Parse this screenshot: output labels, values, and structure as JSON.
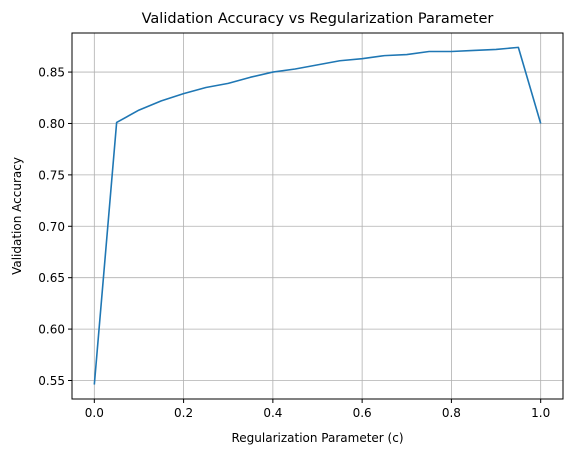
{
  "chart_data": {
    "type": "line",
    "title": "Validation Accuracy vs Regularization Parameter",
    "xlabel": "Regularization Parameter (c)",
    "ylabel": "Validation Accuracy",
    "xlim": [
      -0.05,
      1.05
    ],
    "ylim": [
      0.532,
      0.888
    ],
    "xticks": [
      0.0,
      0.2,
      0.4,
      0.6,
      0.8,
      1.0
    ],
    "xtick_labels": [
      "0.0",
      "0.2",
      "0.4",
      "0.6",
      "0.8",
      "1.0"
    ],
    "yticks": [
      0.55,
      0.6,
      0.65,
      0.7,
      0.75,
      0.8,
      0.85
    ],
    "ytick_labels": [
      "0.55",
      "0.60",
      "0.65",
      "0.70",
      "0.75",
      "0.80",
      "0.85"
    ],
    "grid": true,
    "color": "#1f77b4",
    "series": [
      {
        "x": [
          0.0,
          0.05,
          0.1,
          0.15,
          0.2,
          0.25,
          0.3,
          0.35,
          0.4,
          0.45,
          0.5,
          0.55,
          0.6,
          0.65,
          0.7,
          0.75,
          0.8,
          0.85,
          0.9,
          0.95,
          1.0
        ],
        "y": [
          0.546,
          0.801,
          0.813,
          0.822,
          0.829,
          0.835,
          0.839,
          0.845,
          0.85,
          0.853,
          0.857,
          0.861,
          0.863,
          0.866,
          0.867,
          0.87,
          0.87,
          0.871,
          0.872,
          0.874,
          0.8
        ]
      }
    ]
  }
}
